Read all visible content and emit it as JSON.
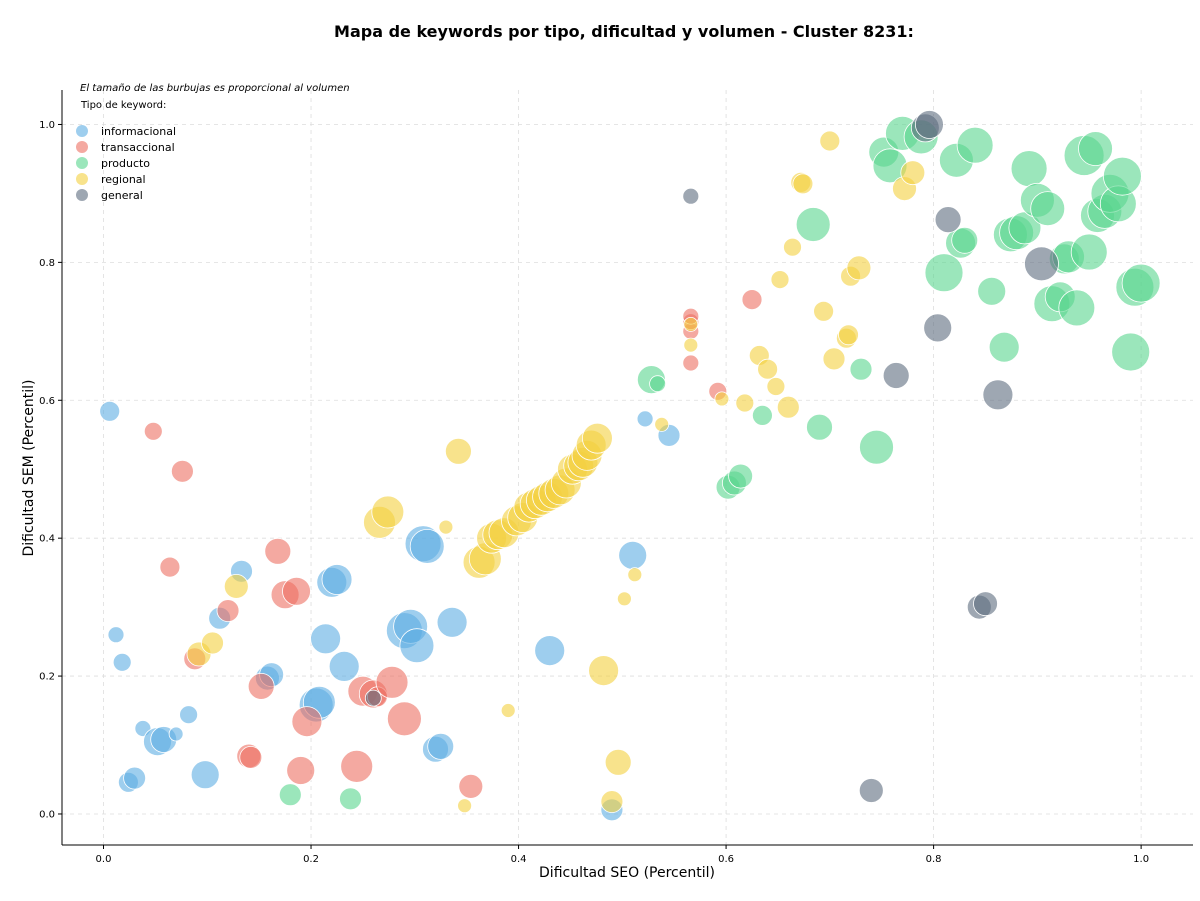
{
  "chart_data": {
    "type": "scatter",
    "title": "Mapa de keywords por tipo, dificultad y volumen - Cluster 8231:",
    "xlabel": "Dificultad SEO (Percentil)",
    "ylabel": "Dificultad SEM (Percentil)",
    "note": "El tamaño de las burbujas es proporcional al volumen",
    "legend_title": "Tipo de keyword:",
    "legend_position": "top-left",
    "xlim": [
      -0.04,
      1.05
    ],
    "ylim": [
      -0.045,
      1.05
    ],
    "xticks": [
      "0.0",
      "0.2",
      "0.4",
      "0.6",
      "0.8",
      "1.0"
    ],
    "yticks": [
      "0.0",
      "0.2",
      "0.4",
      "0.6",
      "0.8",
      "1.0"
    ],
    "grid": true,
    "series": [
      {
        "name": "informacional",
        "color": "#5DADE2",
        "points": [
          [
            0.006,
            0.584,
            10
          ],
          [
            0.012,
            0.26,
            8
          ],
          [
            0.018,
            0.22,
            9
          ],
          [
            0.024,
            0.046,
            10
          ],
          [
            0.03,
            0.052,
            11
          ],
          [
            0.038,
            0.124,
            8
          ],
          [
            0.052,
            0.105,
            14
          ],
          [
            0.058,
            0.108,
            13
          ],
          [
            0.07,
            0.116,
            7
          ],
          [
            0.082,
            0.144,
            9
          ],
          [
            0.098,
            0.057,
            14
          ],
          [
            0.112,
            0.284,
            11
          ],
          [
            0.133,
            0.352,
            11
          ],
          [
            0.158,
            0.197,
            12
          ],
          [
            0.162,
            0.202,
            12
          ],
          [
            0.205,
            0.158,
            17
          ],
          [
            0.208,
            0.162,
            16
          ],
          [
            0.214,
            0.254,
            15
          ],
          [
            0.22,
            0.336,
            15
          ],
          [
            0.225,
            0.34,
            15
          ],
          [
            0.232,
            0.214,
            15
          ],
          [
            0.29,
            0.266,
            18
          ],
          [
            0.296,
            0.272,
            17
          ],
          [
            0.302,
            0.244,
            17
          ],
          [
            0.308,
            0.392,
            18
          ],
          [
            0.312,
            0.388,
            17
          ],
          [
            0.32,
            0.094,
            13
          ],
          [
            0.325,
            0.098,
            13
          ],
          [
            0.336,
            0.278,
            15
          ],
          [
            0.43,
            0.237,
            15
          ],
          [
            0.49,
            0.006,
            11
          ],
          [
            0.51,
            0.375,
            14
          ],
          [
            0.522,
            0.573,
            8
          ],
          [
            0.545,
            0.549,
            11
          ]
        ]
      },
      {
        "name": "transaccional",
        "color": "#EC7063",
        "points": [
          [
            0.048,
            0.555,
            9
          ],
          [
            0.076,
            0.497,
            11
          ],
          [
            0.064,
            0.358,
            10
          ],
          [
            0.088,
            0.225,
            11
          ],
          [
            0.12,
            0.295,
            11
          ],
          [
            0.14,
            0.084,
            12
          ],
          [
            0.142,
            0.082,
            11
          ],
          [
            0.152,
            0.185,
            13
          ],
          [
            0.168,
            0.381,
            13
          ],
          [
            0.175,
            0.318,
            14
          ],
          [
            0.186,
            0.323,
            14
          ],
          [
            0.19,
            0.063,
            14
          ],
          [
            0.196,
            0.134,
            15
          ],
          [
            0.244,
            0.069,
            16
          ],
          [
            0.25,
            0.178,
            15
          ],
          [
            0.26,
            0.174,
            14
          ],
          [
            0.264,
            0.17,
            10
          ],
          [
            0.278,
            0.191,
            16
          ],
          [
            0.29,
            0.138,
            17
          ],
          [
            0.354,
            0.04,
            12
          ],
          [
            0.566,
            0.654,
            8
          ],
          [
            0.566,
            0.7,
            8
          ],
          [
            0.566,
            0.714,
            8
          ],
          [
            0.566,
            0.722,
            8
          ],
          [
            0.592,
            0.613,
            9
          ],
          [
            0.625,
            0.746,
            10
          ]
        ]
      },
      {
        "name": "producto",
        "color": "#58D68D",
        "points": [
          [
            0.18,
            0.028,
            11
          ],
          [
            0.238,
            0.022,
            11
          ],
          [
            0.528,
            0.63,
            14
          ],
          [
            0.534,
            0.624,
            8
          ],
          [
            0.602,
            0.474,
            12
          ],
          [
            0.608,
            0.48,
            12
          ],
          [
            0.614,
            0.49,
            12
          ],
          [
            0.635,
            0.578,
            10
          ],
          [
            0.684,
            0.855,
            17
          ],
          [
            0.69,
            0.561,
            13
          ],
          [
            0.73,
            0.645,
            11
          ],
          [
            0.745,
            0.532,
            17
          ],
          [
            0.752,
            0.96,
            15
          ],
          [
            0.758,
            0.94,
            17
          ],
          [
            0.77,
            0.987,
            17
          ],
          [
            0.788,
            0.982,
            17
          ],
          [
            0.822,
            0.948,
            17
          ],
          [
            0.81,
            0.785,
            19
          ],
          [
            0.826,
            0.828,
            15
          ],
          [
            0.83,
            0.832,
            13
          ],
          [
            0.84,
            0.97,
            18
          ],
          [
            0.856,
            0.758,
            14
          ],
          [
            0.868,
            0.677,
            15
          ],
          [
            0.874,
            0.84,
            17
          ],
          [
            0.88,
            0.843,
            17
          ],
          [
            0.888,
            0.85,
            16
          ],
          [
            0.892,
            0.936,
            18
          ],
          [
            0.9,
            0.89,
            17
          ],
          [
            0.91,
            0.878,
            17
          ],
          [
            0.914,
            0.74,
            18
          ],
          [
            0.922,
            0.75,
            15
          ],
          [
            0.926,
            0.805,
            15
          ],
          [
            0.93,
            0.808,
            16
          ],
          [
            0.938,
            0.734,
            18
          ],
          [
            0.945,
            0.955,
            20
          ],
          [
            0.95,
            0.815,
            18
          ],
          [
            0.956,
            0.965,
            17
          ],
          [
            0.958,
            0.868,
            17
          ],
          [
            0.965,
            0.874,
            17
          ],
          [
            0.97,
            0.9,
            19
          ],
          [
            0.978,
            0.885,
            18
          ],
          [
            0.982,
            0.925,
            19
          ],
          [
            0.99,
            0.67,
            19
          ],
          [
            0.994,
            0.764,
            19
          ],
          [
            1.0,
            0.77,
            19
          ]
        ]
      },
      {
        "name": "regional",
        "color": "#F4D03F",
        "points": [
          [
            0.092,
            0.232,
            12
          ],
          [
            0.105,
            0.248,
            11
          ],
          [
            0.128,
            0.33,
            12
          ],
          [
            0.266,
            0.423,
            16
          ],
          [
            0.274,
            0.438,
            16
          ],
          [
            0.33,
            0.416,
            7
          ],
          [
            0.342,
            0.526,
            13
          ],
          [
            0.348,
            0.012,
            7
          ],
          [
            0.362,
            0.365,
            16
          ],
          [
            0.368,
            0.37,
            16
          ],
          [
            0.374,
            0.4,
            15
          ],
          [
            0.38,
            0.405,
            15
          ],
          [
            0.386,
            0.408,
            15
          ],
          [
            0.39,
            0.15,
            7
          ],
          [
            0.398,
            0.425,
            15
          ],
          [
            0.404,
            0.43,
            15
          ],
          [
            0.41,
            0.445,
            15
          ],
          [
            0.416,
            0.45,
            15
          ],
          [
            0.422,
            0.455,
            15
          ],
          [
            0.428,
            0.46,
            15
          ],
          [
            0.434,
            0.465,
            15
          ],
          [
            0.44,
            0.47,
            15
          ],
          [
            0.446,
            0.48,
            15
          ],
          [
            0.452,
            0.5,
            15
          ],
          [
            0.458,
            0.505,
            15
          ],
          [
            0.462,
            0.51,
            15
          ],
          [
            0.466,
            0.52,
            15
          ],
          [
            0.47,
            0.535,
            15
          ],
          [
            0.476,
            0.545,
            15
          ],
          [
            0.482,
            0.208,
            15
          ],
          [
            0.49,
            0.018,
            11
          ],
          [
            0.496,
            0.075,
            13
          ],
          [
            0.502,
            0.312,
            7
          ],
          [
            0.512,
            0.347,
            7
          ],
          [
            0.538,
            0.565,
            7
          ],
          [
            0.566,
            0.68,
            7
          ],
          [
            0.566,
            0.71,
            7
          ],
          [
            0.596,
            0.602,
            7
          ],
          [
            0.618,
            0.596,
            9
          ],
          [
            0.632,
            0.665,
            10
          ],
          [
            0.64,
            0.645,
            10
          ],
          [
            0.648,
            0.62,
            9
          ],
          [
            0.66,
            0.59,
            11
          ],
          [
            0.664,
            0.822,
            9
          ],
          [
            0.652,
            0.775,
            9
          ],
          [
            0.672,
            0.916,
            10
          ],
          [
            0.674,
            0.914,
            10
          ],
          [
            0.694,
            0.729,
            10
          ],
          [
            0.7,
            0.976,
            10
          ],
          [
            0.704,
            0.66,
            11
          ],
          [
            0.716,
            0.69,
            10
          ],
          [
            0.718,
            0.695,
            10
          ],
          [
            0.72,
            0.78,
            10
          ],
          [
            0.728,
            0.792,
            12
          ],
          [
            0.772,
            0.907,
            12
          ],
          [
            0.78,
            0.93,
            12
          ]
        ]
      },
      {
        "name": "general",
        "color": "#5D6D7E",
        "points": [
          [
            0.26,
            0.168,
            8
          ],
          [
            0.566,
            0.896,
            8
          ],
          [
            0.74,
            0.034,
            12
          ],
          [
            0.764,
            0.636,
            13
          ],
          [
            0.792,
            0.995,
            14
          ],
          [
            0.796,
            1.0,
            14
          ],
          [
            0.804,
            0.705,
            14
          ],
          [
            0.814,
            0.862,
            13
          ],
          [
            0.844,
            0.3,
            12
          ],
          [
            0.85,
            0.305,
            12
          ],
          [
            0.862,
            0.608,
            15
          ],
          [
            0.904,
            0.798,
            17
          ]
        ]
      }
    ]
  }
}
